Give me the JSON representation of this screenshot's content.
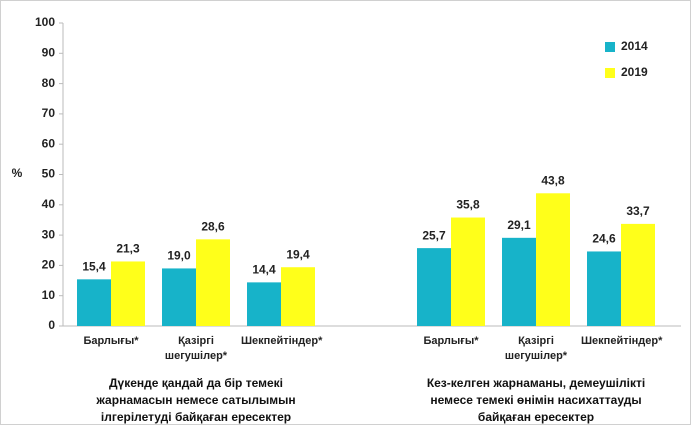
{
  "chart_data": {
    "type": "bar",
    "y_label": "%",
    "categories": [
      "Барлығы*",
      "Қазіргі шегушілер*",
      "Шекпейтіндер*",
      "Барлығы*",
      "Қазіргі шегушілер*",
      "Шекпейтіндер*"
    ],
    "group_labels": [
      "Дүкенде қандай да бір темекі жарнамасын немесе сатылымын ілгерілетуді байқаған ересектер",
      "Кез-келген жарнаманы, демеушілікті немесе темекі өнімін насихаттауды байқаған ересектер"
    ],
    "series": [
      {
        "name": "2014",
        "color": "#17b3c9",
        "values": [
          15.4,
          19.0,
          14.4,
          25.7,
          29.1,
          24.6
        ],
        "value_labels": [
          "15,4",
          "19,0",
          "14,4",
          "25,7",
          "29,1",
          "24,6"
        ]
      },
      {
        "name": "2019",
        "color": "#ffff1a",
        "values": [
          21.3,
          28.6,
          19.4,
          35.8,
          43.8,
          33.7
        ],
        "value_labels": [
          "21,3",
          "28,6",
          "19,4",
          "35,8",
          "43,8",
          "33,7"
        ]
      }
    ],
    "ylim": [
      0,
      100
    ],
    "yticks": [
      0,
      10,
      20,
      30,
      40,
      50,
      60,
      70,
      80,
      90,
      100
    ],
    "legend_position": "upper right"
  }
}
